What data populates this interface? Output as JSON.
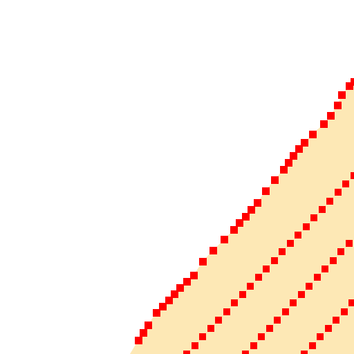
{
  "map": {
    "background_color": "#ffffff",
    "fill_color": "#fde8b5",
    "boundary_color": "#ff0000",
    "hatch_color": "#ff0000",
    "style": "pixelated dashed boundary with diagonal hatching over shaded area"
  }
}
